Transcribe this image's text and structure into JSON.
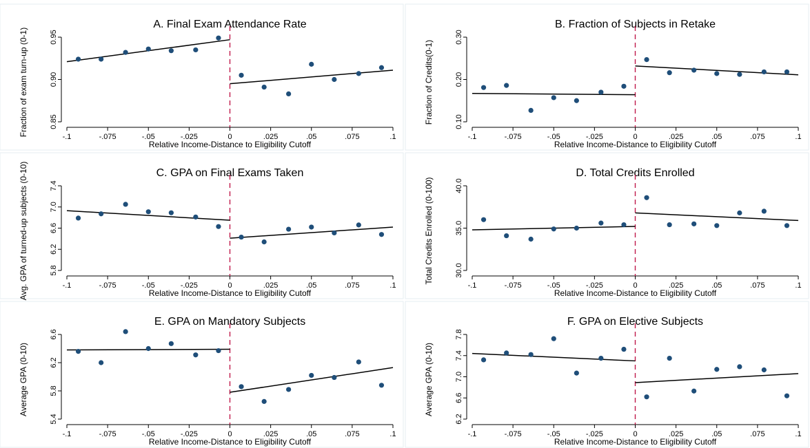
{
  "chart_data": [
    {
      "type": "scatter",
      "title": "A. Final Exam Attendance Rate",
      "xlabel": "Relative Income-Distance to Eligibility Cutoff",
      "ylabel": "Fraction of exam turn-up (0-1)",
      "xlim": [
        -0.1,
        0.1
      ],
      "ylim": [
        0.85,
        0.95
      ],
      "xticks": [
        -0.1,
        -0.075,
        -0.05,
        -0.025,
        0,
        0.025,
        0.05,
        0.075,
        0.1
      ],
      "xtick_labels": [
        "-.1",
        "-.075",
        "-.05",
        "-.025",
        "0",
        ".025",
        ".05",
        ".075",
        ".1"
      ],
      "yticks": [
        0.85,
        0.9,
        0.95
      ],
      "ytick_labels": [
        "0.85",
        "0.90",
        "0.95"
      ],
      "cutoff": 0,
      "points": [
        {
          "x": -0.093,
          "y": 0.924
        },
        {
          "x": -0.079,
          "y": 0.924
        },
        {
          "x": -0.064,
          "y": 0.932
        },
        {
          "x": -0.05,
          "y": 0.936
        },
        {
          "x": -0.036,
          "y": 0.934
        },
        {
          "x": -0.021,
          "y": 0.935
        },
        {
          "x": -0.007,
          "y": 0.949
        },
        {
          "x": 0.007,
          "y": 0.905
        },
        {
          "x": 0.021,
          "y": 0.891
        },
        {
          "x": 0.036,
          "y": 0.883
        },
        {
          "x": 0.05,
          "y": 0.918
        },
        {
          "x": 0.064,
          "y": 0.9
        },
        {
          "x": 0.079,
          "y": 0.907
        },
        {
          "x": 0.093,
          "y": 0.914
        }
      ],
      "fit_left": [
        [
          -0.1,
          0.921
        ],
        [
          0,
          0.947
        ]
      ],
      "fit_right": [
        [
          0,
          0.895
        ],
        [
          0.1,
          0.911
        ]
      ]
    },
    {
      "type": "scatter",
      "title": "B. Fraction of Subjects in Retake",
      "xlabel": "Relative Income-Distance to Eligibility Cutoff",
      "ylabel": "Fraction of Credits(0-1)",
      "xlim": [
        -0.1,
        0.1
      ],
      "ylim": [
        0.1,
        0.3
      ],
      "xticks": [
        -0.1,
        -0.075,
        -0.05,
        -0.025,
        0,
        0.025,
        0.05,
        0.075,
        0.1
      ],
      "xtick_labels": [
        "-.1",
        "-.075",
        "-.05",
        "-.025",
        "0",
        ".025",
        ".05",
        ".075",
        ".1"
      ],
      "yticks": [
        0.1,
        0.2,
        0.3
      ],
      "ytick_labels": [
        "0.10",
        "0.20",
        "0.30"
      ],
      "cutoff": 0,
      "points": [
        {
          "x": -0.093,
          "y": 0.181
        },
        {
          "x": -0.079,
          "y": 0.186
        },
        {
          "x": -0.064,
          "y": 0.127
        },
        {
          "x": -0.05,
          "y": 0.157
        },
        {
          "x": -0.036,
          "y": 0.15
        },
        {
          "x": -0.021,
          "y": 0.17
        },
        {
          "x": -0.007,
          "y": 0.184
        },
        {
          "x": 0.007,
          "y": 0.247
        },
        {
          "x": 0.021,
          "y": 0.216
        },
        {
          "x": 0.036,
          "y": 0.222
        },
        {
          "x": 0.05,
          "y": 0.214
        },
        {
          "x": 0.064,
          "y": 0.212
        },
        {
          "x": 0.079,
          "y": 0.218
        },
        {
          "x": 0.093,
          "y": 0.218
        }
      ],
      "fit_left": [
        [
          -0.1,
          0.167
        ],
        [
          0,
          0.164
        ]
      ],
      "fit_right": [
        [
          0,
          0.232
        ],
        [
          0.1,
          0.211
        ]
      ]
    },
    {
      "type": "scatter",
      "title": "C. GPA on Final Exams Taken",
      "xlabel": "Relative Income-Distance to Eligibility Cutoff",
      "ylabel": "Avg. GPA of turned-up subjects (0-10)",
      "xlim": [
        -0.1,
        0.1
      ],
      "ylim": [
        5.8,
        7.4
      ],
      "xticks": [
        -0.1,
        -0.075,
        -0.05,
        -0.025,
        0,
        0.025,
        0.05,
        0.075,
        0.1
      ],
      "xtick_labels": [
        "-.1",
        "-.075",
        "-.05",
        "-.025",
        "0",
        ".025",
        ".05",
        ".075",
        ".1"
      ],
      "yticks": [
        5.8,
        6.2,
        6.6,
        7.0,
        7.4
      ],
      "ytick_labels": [
        "5.8",
        "6.2",
        "6.6",
        "7.0",
        "7.4"
      ],
      "cutoff": 0,
      "points": [
        {
          "x": -0.093,
          "y": 6.79
        },
        {
          "x": -0.079,
          "y": 6.87
        },
        {
          "x": -0.064,
          "y": 7.05
        },
        {
          "x": -0.05,
          "y": 6.91
        },
        {
          "x": -0.036,
          "y": 6.89
        },
        {
          "x": -0.021,
          "y": 6.81
        },
        {
          "x": -0.007,
          "y": 6.63
        },
        {
          "x": 0.007,
          "y": 6.43
        },
        {
          "x": 0.021,
          "y": 6.34
        },
        {
          "x": 0.036,
          "y": 6.58
        },
        {
          "x": 0.05,
          "y": 6.62
        },
        {
          "x": 0.064,
          "y": 6.51
        },
        {
          "x": 0.079,
          "y": 6.66
        },
        {
          "x": 0.093,
          "y": 6.48
        }
      ],
      "fit_left": [
        [
          -0.1,
          6.93
        ],
        [
          0,
          6.75
        ]
      ],
      "fit_right": [
        [
          0,
          6.41
        ],
        [
          0.1,
          6.62
        ]
      ]
    },
    {
      "type": "scatter",
      "title": "D. Total Credits Enrolled",
      "xlabel": "Relative Income-Distance to Eligibility Cutoff",
      "ylabel": "Total Credits Enrolled (0-100)",
      "xlim": [
        -0.1,
        0.1
      ],
      "ylim": [
        30.0,
        40.0
      ],
      "xticks": [
        -0.1,
        -0.075,
        -0.05,
        -0.025,
        0,
        0.025,
        0.05,
        0.075,
        0.1
      ],
      "xtick_labels": [
        "-.1",
        "-.075",
        "-.05",
        "-.025",
        "0",
        ".025",
        ".05",
        ".075",
        ".1"
      ],
      "yticks": [
        30.0,
        35.0,
        40.0
      ],
      "ytick_labels": [
        "30.0",
        "35.0",
        "40.0"
      ],
      "cutoff": 0,
      "points": [
        {
          "x": -0.093,
          "y": 36.0
        },
        {
          "x": -0.079,
          "y": 34.1
        },
        {
          "x": -0.064,
          "y": 33.7
        },
        {
          "x": -0.05,
          "y": 34.9
        },
        {
          "x": -0.036,
          "y": 35.0
        },
        {
          "x": -0.021,
          "y": 35.6
        },
        {
          "x": -0.007,
          "y": 35.4
        },
        {
          "x": 0.007,
          "y": 38.6
        },
        {
          "x": 0.021,
          "y": 35.4
        },
        {
          "x": 0.036,
          "y": 35.5
        },
        {
          "x": 0.05,
          "y": 35.3
        },
        {
          "x": 0.064,
          "y": 36.8
        },
        {
          "x": 0.079,
          "y": 37.0
        },
        {
          "x": 0.093,
          "y": 35.3
        }
      ],
      "fit_left": [
        [
          -0.1,
          34.8
        ],
        [
          0,
          35.2
        ]
      ],
      "fit_right": [
        [
          0,
          36.8
        ],
        [
          0.1,
          35.9
        ]
      ]
    },
    {
      "type": "scatter",
      "title": "E. GPA on Mandatory Subjects",
      "xlabel": "Relative Income-Distance to Eligibility Cutoff",
      "ylabel": "Average GPA (0-10)",
      "xlim": [
        -0.1,
        0.1
      ],
      "ylim": [
        5.4,
        6.6
      ],
      "xticks": [
        -0.1,
        -0.075,
        -0.05,
        -0.025,
        0,
        0.025,
        0.05,
        0.075,
        0.1
      ],
      "xtick_labels": [
        "-.1",
        "-.075",
        "-.05",
        "-.025",
        "0",
        ".025",
        ".05",
        ".075",
        ".1"
      ],
      "yticks": [
        5.4,
        5.8,
        6.2,
        6.6
      ],
      "ytick_labels": [
        "5.4",
        "5.8",
        "6.2",
        "6.6"
      ],
      "cutoff": 0,
      "points": [
        {
          "x": -0.093,
          "y": 6.36
        },
        {
          "x": -0.079,
          "y": 6.2
        },
        {
          "x": -0.064,
          "y": 6.64
        },
        {
          "x": -0.05,
          "y": 6.4
        },
        {
          "x": -0.036,
          "y": 6.47
        },
        {
          "x": -0.021,
          "y": 6.31
        },
        {
          "x": -0.007,
          "y": 6.37
        },
        {
          "x": 0.007,
          "y": 5.86
        },
        {
          "x": 0.021,
          "y": 5.65
        },
        {
          "x": 0.036,
          "y": 5.82
        },
        {
          "x": 0.05,
          "y": 6.02
        },
        {
          "x": 0.064,
          "y": 5.99
        },
        {
          "x": 0.079,
          "y": 6.21
        },
        {
          "x": 0.093,
          "y": 5.88
        }
      ],
      "fit_left": [
        [
          -0.1,
          6.38
        ],
        [
          0,
          6.39
        ]
      ],
      "fit_right": [
        [
          0,
          5.78
        ],
        [
          0.1,
          6.13
        ]
      ]
    },
    {
      "type": "scatter",
      "title": "F. GPA on Elective Subjects",
      "xlabel": "Relative Income-Distance to Eligibility Cutoff",
      "ylabel": "Average GPA (0-10)",
      "xlim": [
        -0.1,
        0.1
      ],
      "ylim": [
        6.2,
        7.8
      ],
      "xticks": [
        -0.1,
        -0.075,
        -0.05,
        -0.025,
        0,
        0.025,
        0.05,
        0.075,
        0.1
      ],
      "xtick_labels": [
        "-.1",
        "-.075",
        "-.05",
        "-.025",
        "0",
        ".025",
        ".05",
        ".075",
        ".1"
      ],
      "yticks": [
        6.2,
        6.6,
        7.0,
        7.4,
        7.8
      ],
      "ytick_labels": [
        "6.2",
        "6.6",
        "7.0",
        "7.4",
        "7.8"
      ],
      "cutoff": 0,
      "points": [
        {
          "x": -0.093,
          "y": 7.32
        },
        {
          "x": -0.079,
          "y": 7.45
        },
        {
          "x": -0.064,
          "y": 7.42
        },
        {
          "x": -0.05,
          "y": 7.72
        },
        {
          "x": -0.036,
          "y": 7.07
        },
        {
          "x": -0.021,
          "y": 7.35
        },
        {
          "x": -0.007,
          "y": 7.52
        },
        {
          "x": 0.007,
          "y": 6.62
        },
        {
          "x": 0.021,
          "y": 7.35
        },
        {
          "x": 0.036,
          "y": 6.73
        },
        {
          "x": 0.05,
          "y": 7.14
        },
        {
          "x": 0.064,
          "y": 7.19
        },
        {
          "x": 0.079,
          "y": 7.13
        },
        {
          "x": 0.093,
          "y": 6.64
        }
      ],
      "fit_left": [
        [
          -0.1,
          7.44
        ],
        [
          0,
          7.3
        ]
      ],
      "fit_right": [
        [
          0,
          6.89
        ],
        [
          0.1,
          7.06
        ]
      ]
    }
  ]
}
